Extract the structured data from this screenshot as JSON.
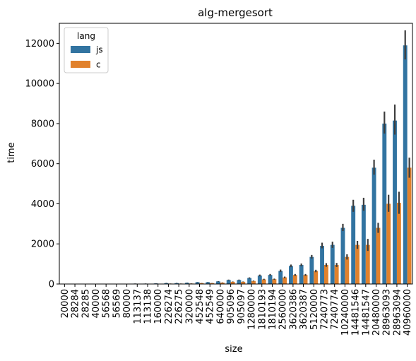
{
  "chart_data": {
    "type": "bar",
    "title": "alg-mergesort",
    "xlabel": "size",
    "ylabel": "time",
    "ylim": [
      0,
      13000
    ],
    "yticks": [
      0,
      2000,
      4000,
      6000,
      8000,
      10000,
      12000
    ],
    "categories": [
      "20000",
      "28284",
      "28285",
      "40000",
      "56568",
      "56569",
      "80000",
      "113137",
      "113138",
      "160000",
      "226274",
      "226275",
      "320000",
      "452548",
      "452549",
      "640000",
      "905096",
      "905097",
      "1280000",
      "1810193",
      "1810194",
      "2560000",
      "3620386",
      "3620387",
      "5120000",
      "7240773",
      "7240774",
      "10240000",
      "14481546",
      "14481547",
      "20480000",
      "28963093",
      "28963094",
      "40960000"
    ],
    "legend": {
      "title": "lang",
      "placement": "top-left"
    },
    "series": [
      {
        "name": "js",
        "color": "#3274a1",
        "values": [
          3,
          3,
          4,
          5,
          8,
          8,
          10,
          20,
          20,
          30,
          45,
          45,
          60,
          90,
          90,
          130,
          200,
          200,
          300,
          420,
          450,
          650,
          900,
          950,
          1350,
          1900,
          1950,
          2800,
          3900,
          3950,
          5800,
          8000,
          8150,
          11900
        ],
        "ci": [
          [
            2,
            4
          ],
          [
            2,
            4
          ],
          [
            3,
            5
          ],
          [
            4,
            6
          ],
          [
            6,
            10
          ],
          [
            6,
            10
          ],
          [
            8,
            12
          ],
          [
            15,
            25
          ],
          [
            15,
            25
          ],
          [
            25,
            35
          ],
          [
            35,
            55
          ],
          [
            35,
            55
          ],
          [
            50,
            70
          ],
          [
            80,
            100
          ],
          [
            80,
            100
          ],
          [
            115,
            145
          ],
          [
            180,
            220
          ],
          [
            180,
            220
          ],
          [
            270,
            330
          ],
          [
            380,
            470
          ],
          [
            410,
            500
          ],
          [
            600,
            720
          ],
          [
            840,
            970
          ],
          [
            880,
            1020
          ],
          [
            1270,
            1450
          ],
          [
            1780,
            2060
          ],
          [
            1800,
            2110
          ],
          [
            2640,
            3000
          ],
          [
            3600,
            4200
          ],
          [
            3650,
            4300
          ],
          [
            5450,
            6200
          ],
          [
            7500,
            8600
          ],
          [
            7450,
            8950
          ],
          [
            11200,
            12650
          ]
        ]
      },
      {
        "name": "c",
        "color": "#e1812c",
        "values": [
          1,
          1,
          1,
          2,
          3,
          3,
          4,
          8,
          8,
          10,
          20,
          20,
          25,
          45,
          45,
          70,
          110,
          110,
          150,
          230,
          240,
          330,
          450,
          450,
          650,
          950,
          950,
          1350,
          1950,
          1950,
          2800,
          4000,
          4050,
          5800
        ],
        "ci": [
          [
            0,
            2
          ],
          [
            0,
            2
          ],
          [
            0,
            2
          ],
          [
            1,
            3
          ],
          [
            2,
            4
          ],
          [
            2,
            4
          ],
          [
            3,
            5
          ],
          [
            6,
            10
          ],
          [
            6,
            10
          ],
          [
            8,
            12
          ],
          [
            15,
            25
          ],
          [
            15,
            25
          ],
          [
            20,
            30
          ],
          [
            38,
            52
          ],
          [
            38,
            52
          ],
          [
            60,
            80
          ],
          [
            95,
            125
          ],
          [
            95,
            125
          ],
          [
            130,
            170
          ],
          [
            200,
            260
          ],
          [
            210,
            270
          ],
          [
            290,
            370
          ],
          [
            400,
            500
          ],
          [
            400,
            500
          ],
          [
            590,
            710
          ],
          [
            860,
            1040
          ],
          [
            850,
            1050
          ],
          [
            1220,
            1480
          ],
          [
            1750,
            2150
          ],
          [
            1650,
            2250
          ],
          [
            2550,
            3050
          ],
          [
            3600,
            4450
          ],
          [
            3500,
            4600
          ],
          [
            5300,
            6300
          ]
        ]
      }
    ],
    "errorbar_color": "#3d3d3d",
    "grid": false
  }
}
